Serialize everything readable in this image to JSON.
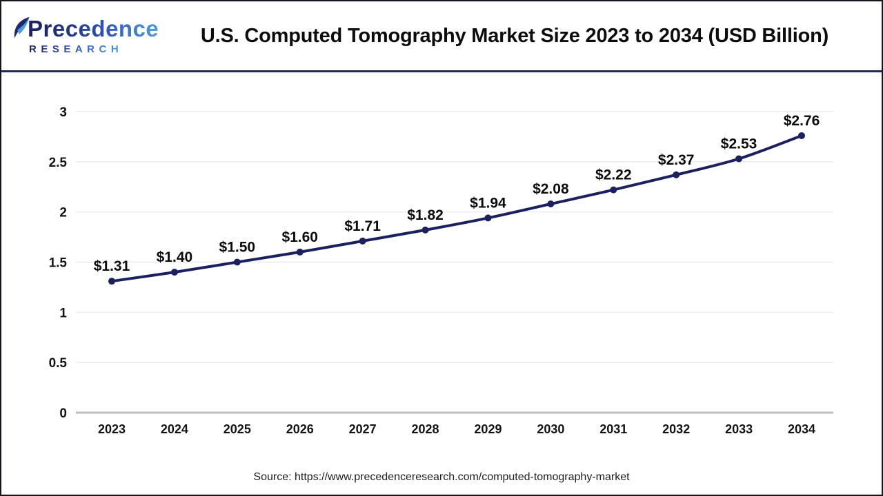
{
  "header": {
    "logo": {
      "name": "Precedence",
      "subtitle": "RESEARCH"
    },
    "title": "U.S. Computed Tomography Market Size 2023 to 2034 (USD Billion)"
  },
  "chart_data": {
    "type": "line",
    "title": "U.S. Computed Tomography Market Size 2023 to 2034 (USD Billion)",
    "categories": [
      "2023",
      "2024",
      "2025",
      "2026",
      "2027",
      "2028",
      "2029",
      "2030",
      "2031",
      "2032",
      "2033",
      "2034"
    ],
    "values": [
      1.31,
      1.4,
      1.5,
      1.6,
      1.71,
      1.82,
      1.94,
      2.08,
      2.22,
      2.37,
      2.53,
      2.76
    ],
    "labels": [
      "$1.31",
      "$1.40",
      "$1.50",
      "$1.60",
      "$1.71",
      "$1.82",
      "$1.94",
      "$2.08",
      "$2.22",
      "$2.37",
      "$2.53",
      "$2.76"
    ],
    "xlabel": "",
    "ylabel": "",
    "ylim": [
      0,
      3
    ],
    "yticks": [
      0,
      0.5,
      1,
      1.5,
      2,
      2.5,
      3
    ],
    "ytick_labels": [
      "0",
      "0.5",
      "1",
      "1.5",
      "2",
      "2.5",
      "3"
    ],
    "grid": true,
    "legend": "none",
    "colors": {
      "line": "#1b215e",
      "marker": "#1b215e",
      "grid": "#ececec",
      "axis_line": "#bdbdbd",
      "label_text": "#0c0c0c",
      "header_rule": "#23265f"
    }
  },
  "footer": {
    "source": "Source: https://www.precedenceresearch.com/computed-tomography-market"
  }
}
